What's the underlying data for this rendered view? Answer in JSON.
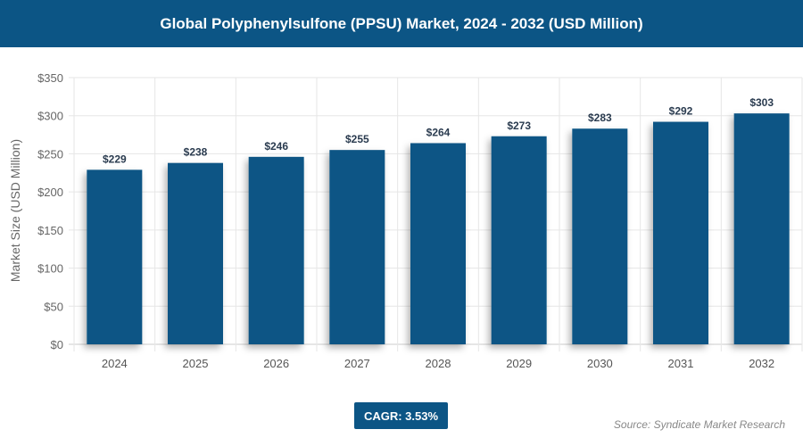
{
  "chart_data": {
    "type": "bar",
    "title": "Global Polyphenylsulfone (PPSU) Market, 2024 - 2032 (USD Million)",
    "categories": [
      "2024",
      "2025",
      "2026",
      "2027",
      "2028",
      "2029",
      "2030",
      "2031",
      "2032"
    ],
    "values": [
      229,
      238,
      246,
      255,
      264,
      273,
      283,
      292,
      303
    ],
    "data_labels": [
      "$229",
      "$238",
      "$246",
      "$255",
      "$264",
      "$273",
      "$283",
      "$292",
      "$303"
    ],
    "xlabel": "",
    "ylabel": "Market Size (USD Million)",
    "ylim": [
      0,
      350
    ],
    "yticks": [
      "$0",
      "$50",
      "$100",
      "$150",
      "$200",
      "$250",
      "$300",
      "$350"
    ],
    "grid": true,
    "bar_color": "#0c5585"
  },
  "cagr": "CAGR: 3.53%",
  "source": "Source: Syndicate Market Research"
}
